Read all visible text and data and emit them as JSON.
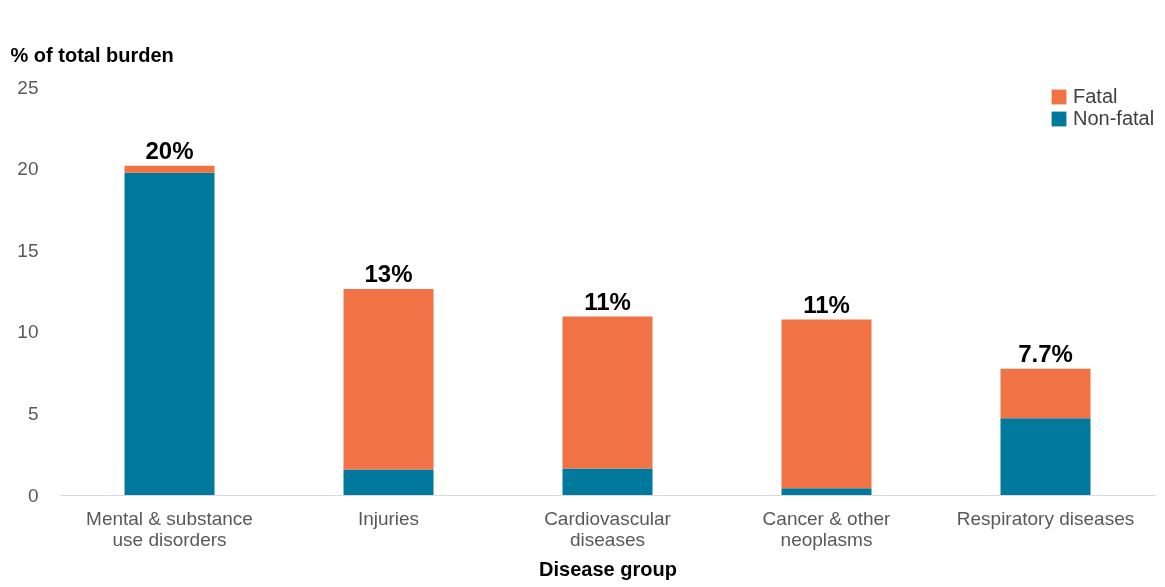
{
  "chart_data": {
    "type": "bar",
    "stacked": true,
    "xlabel": "Disease group",
    "ylabel": "% of total burden",
    "categories": [
      "Mental & substance use disorders",
      "Injuries",
      "Cardiovascular diseases",
      "Cancer & other neoplasms",
      "Respiratory diseases"
    ],
    "series": [
      {
        "name": "Non-fatal",
        "color": "#00799c",
        "values": [
          19.75,
          1.57,
          1.63,
          0.42,
          4.71
        ]
      },
      {
        "name": "Fatal",
        "color": "#f07245",
        "values": [
          0.42,
          11.05,
          9.3,
          10.33,
          3.02
        ]
      }
    ],
    "totals": [
      "20%",
      "13%",
      "11%",
      "11%",
      "7.7%"
    ],
    "ylim": [
      0,
      25
    ],
    "yticks": [
      0,
      5,
      10,
      15,
      20,
      25
    ],
    "grid": false,
    "legend": "top right"
  }
}
